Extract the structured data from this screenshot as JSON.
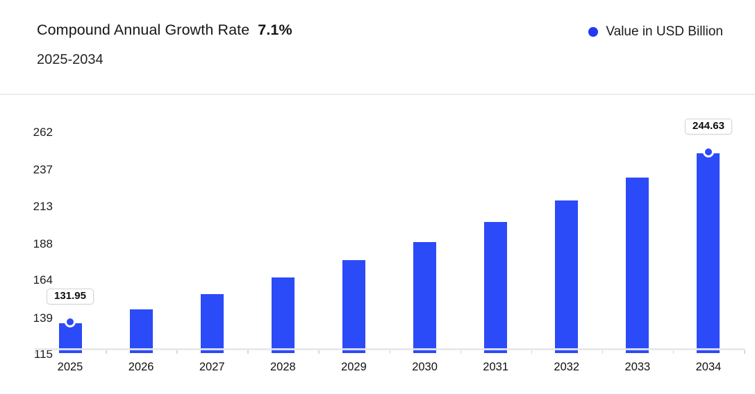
{
  "header": {
    "title": "Compound Annual Growth Rate",
    "cagr": "7.1%",
    "subtitle": "2025-2034",
    "legend_label": "Value in USD Billion"
  },
  "colors": {
    "bar": "#2B4AF8",
    "legend_dot": "#2139F9",
    "axis_line": "#E7E7E7",
    "tick": "#D8D8D8",
    "divider": "#EAEAEA",
    "tooltip_border": "#D3D3D3",
    "title_text": "#161616"
  },
  "chart_data": {
    "type": "bar",
    "title": "Compound Annual Growth Rate 7.1%",
    "subtitle": "2025-2034",
    "categories": [
      "2025",
      "2026",
      "2027",
      "2028",
      "2029",
      "2030",
      "2031",
      "2032",
      "2033",
      "2034"
    ],
    "series": [
      {
        "name": "Value in USD Billion",
        "values": [
          131.95,
          141.32,
          151.35,
          162.1,
          173.61,
          185.93,
          199.13,
          213.27,
          228.41,
          244.63
        ]
      }
    ],
    "yticks": [
      262,
      237,
      213,
      188,
      164,
      139,
      115
    ],
    "ylim": [
      115,
      262
    ],
    "xlabel": "",
    "ylabel": "",
    "grid": false,
    "legend_position": "top-right",
    "annotations": [
      {
        "x": "2025",
        "value": 131.95,
        "label": "131.95"
      },
      {
        "x": "2034",
        "value": 244.63,
        "label": "244.63"
      }
    ]
  }
}
